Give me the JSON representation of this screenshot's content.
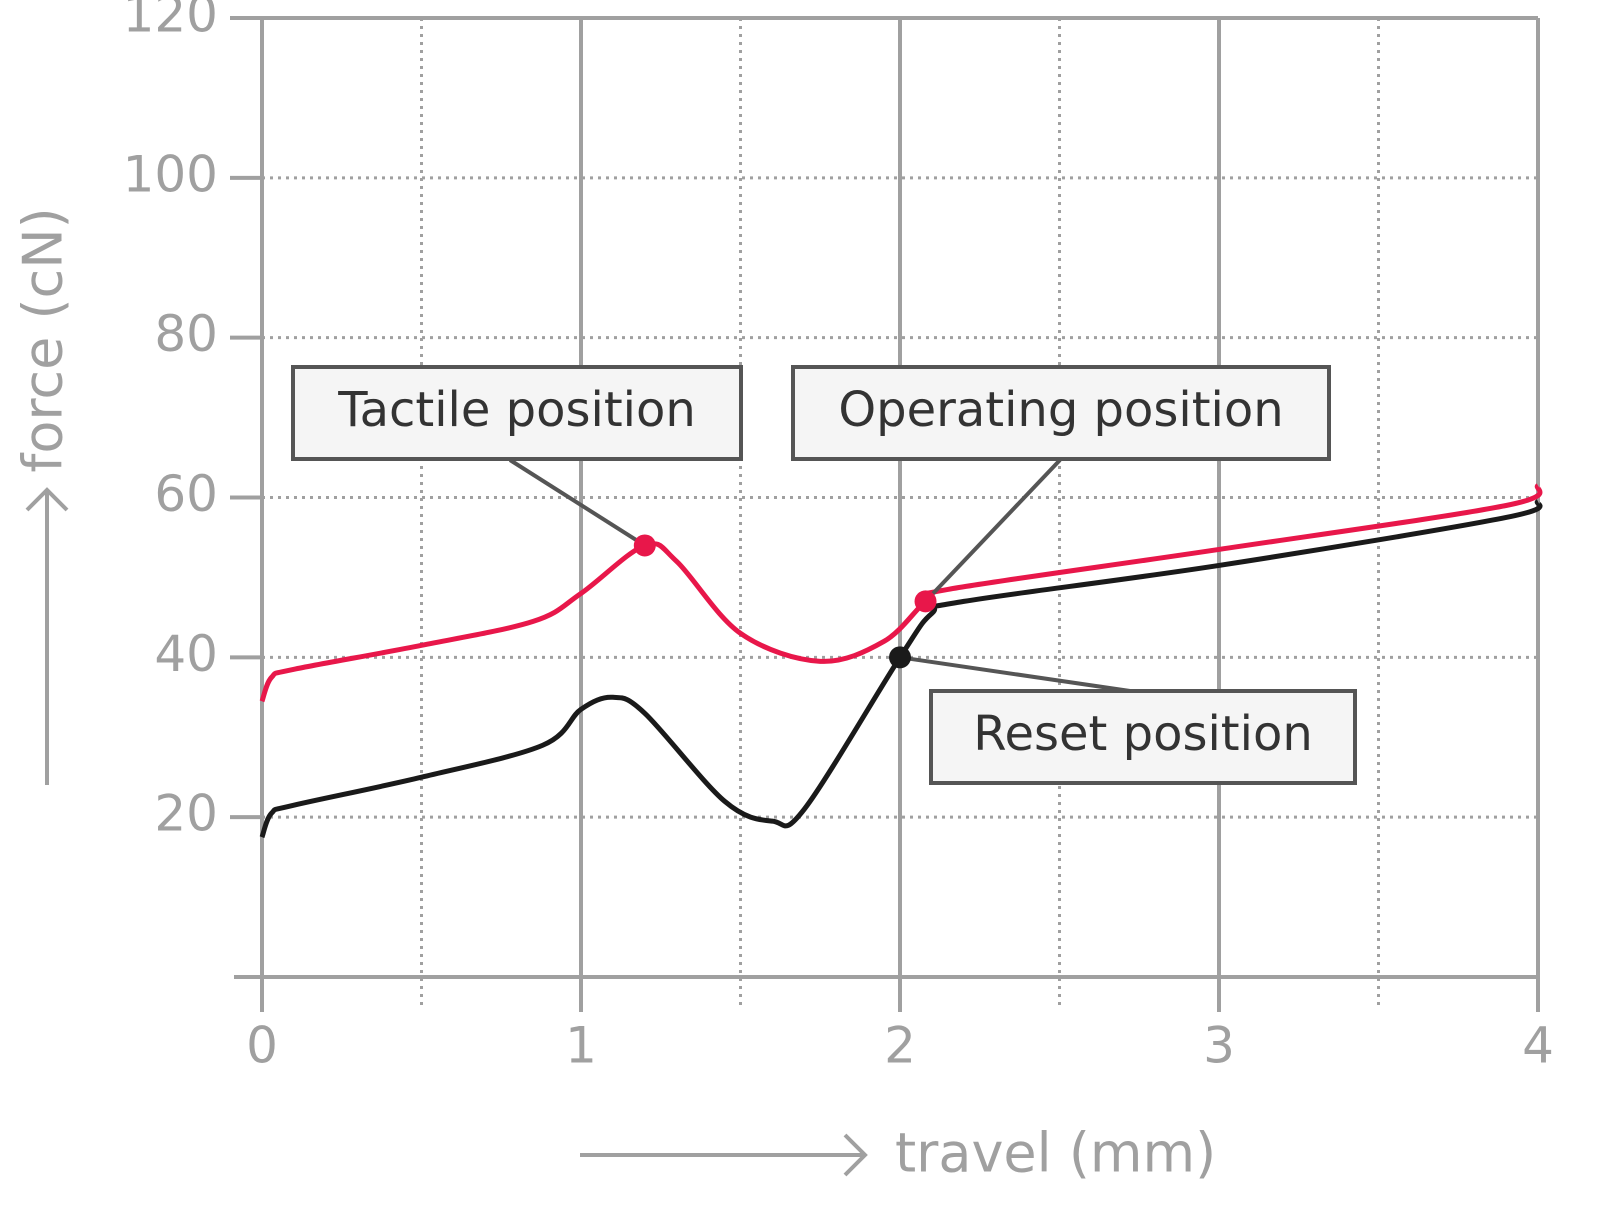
{
  "chart_data": {
    "type": "line",
    "xlabel": "travel (mm)",
    "ylabel": "force (cN)",
    "xlim": [
      0,
      4
    ],
    "xticks": [
      0,
      1,
      2,
      3,
      4
    ],
    "xminorticks": [
      0.5,
      1.5,
      2.5,
      3.5
    ],
    "ylim": [
      0,
      120
    ],
    "yticks": [
      20,
      40,
      60,
      80,
      100,
      120
    ],
    "grid": true,
    "series": [
      {
        "color": "#e8174a",
        "x": [
          0,
          0.03,
          0.1,
          0.5,
          0.85,
          1.0,
          1.2,
          1.3,
          1.5,
          1.75,
          1.95,
          2.08,
          2.15,
          3,
          3.9,
          4
        ],
        "values": [
          34.5,
          37.5,
          38.5,
          41.5,
          44.5,
          48,
          54,
          52,
          43,
          39.5,
          42,
          47,
          48.5,
          53.5,
          59,
          61.5
        ]
      },
      {
        "color": "#1a1a1a",
        "x": [
          0,
          0.03,
          0.1,
          0.5,
          0.88,
          1.0,
          1.1,
          1.2,
          1.45,
          1.6,
          1.7,
          2.0,
          2.1,
          2.2,
          3,
          3.9,
          4
        ],
        "values": [
          17.5,
          20.5,
          21.5,
          25,
          29,
          33.5,
          35,
          33,
          22,
          19.5,
          21,
          40,
          45.5,
          47,
          51.5,
          57.5,
          59.5
        ]
      }
    ],
    "annotations": [
      {
        "text": "Tactile position",
        "x": 1.2,
        "y": 54,
        "color": "#e8174a"
      },
      {
        "text": "Operating position",
        "x": 2.08,
        "y": 47,
        "color": "#e8174a"
      },
      {
        "text": "Reset position",
        "x": 2.0,
        "y": 40,
        "color": "#1a1a1a"
      }
    ]
  }
}
